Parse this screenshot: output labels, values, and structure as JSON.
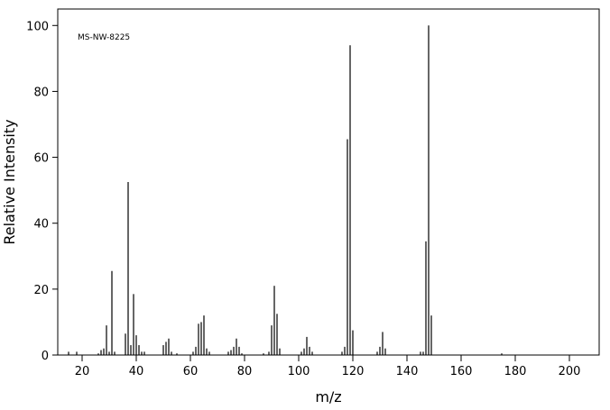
{
  "chart_data": {
    "type": "bar",
    "annotation": "MS-NW-8225",
    "xlabel": "m/z",
    "ylabel": "Relative Intensity",
    "x": [
      15,
      18,
      26,
      27,
      28,
      29,
      30,
      31,
      32,
      36,
      37,
      38,
      39,
      40,
      41,
      42,
      43,
      50,
      51,
      52,
      53,
      55,
      61,
      62,
      63,
      64,
      65,
      66,
      67,
      74,
      75,
      76,
      77,
      78,
      79,
      87,
      89,
      90,
      91,
      92,
      93,
      101,
      102,
      103,
      104,
      105,
      116,
      117,
      118,
      119,
      120,
      129,
      130,
      131,
      132,
      145,
      146,
      147,
      148,
      149,
      175
    ],
    "values": [
      1,
      1,
      0.5,
      1.5,
      2,
      9,
      1,
      25.5,
      1,
      6.5,
      52.5,
      3,
      18.5,
      6,
      3,
      1,
      1,
      3,
      4,
      5,
      1,
      0.5,
      1,
      2.5,
      9.5,
      10,
      12,
      2,
      1,
      1,
      1.5,
      2.5,
      5,
      2.5,
      0.5,
      0.5,
      1,
      9,
      21,
      12.5,
      2,
      1,
      2,
      5.5,
      2.5,
      1,
      1,
      2.5,
      65.5,
      94,
      7.5,
      1,
      2.5,
      7,
      2,
      1,
      1,
      34.5,
      100,
      12,
      0.5
    ],
    "color": "#000000",
    "xlim": [
      11,
      211
    ],
    "ylim": [
      0,
      105
    ],
    "xticks": [
      20,
      40,
      60,
      80,
      100,
      120,
      140,
      160,
      180,
      200
    ],
    "yticks": [
      0,
      20,
      40,
      60,
      80,
      100
    ]
  }
}
